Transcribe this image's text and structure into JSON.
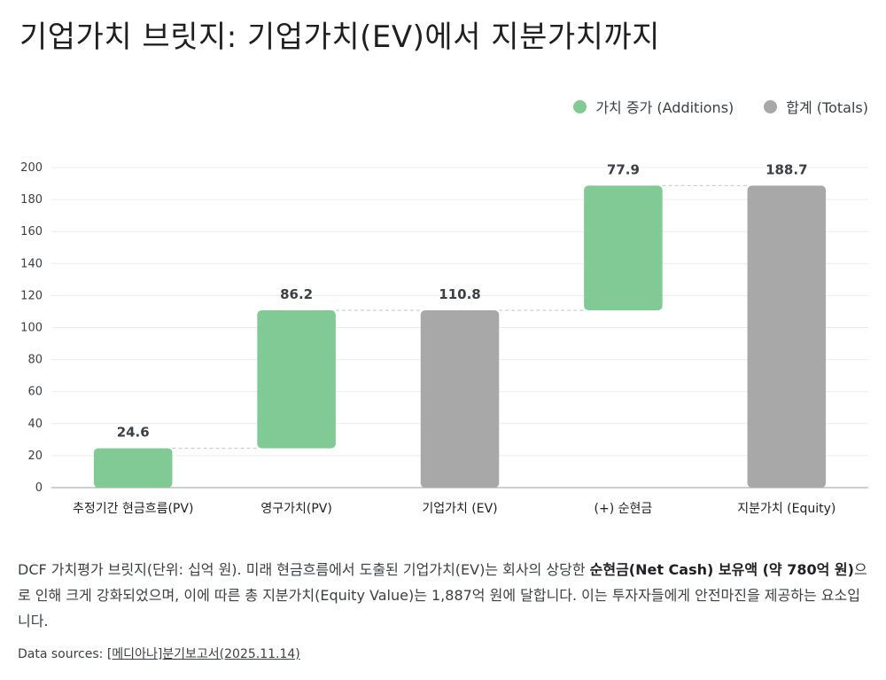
{
  "title": "기업가치 브릿지: 기업가치(EV)에서 지분가치까지",
  "legend": [
    {
      "label": "가치 증가 (Additions)",
      "color": "#81c995"
    },
    {
      "label": "합계 (Totals)",
      "color": "#a8a8a8"
    }
  ],
  "chart_data": {
    "type": "bar",
    "subtype": "waterfall",
    "categories": [
      "추정기간 현금흐름(PV)",
      "영구가치(PV)",
      "기업가치 (EV)",
      "(+) 순현금",
      "지분가치 (Equity)"
    ],
    "series": [
      {
        "name": "가치 증가 (Additions)",
        "points": [
          {
            "category": "추정기간 현금흐름(PV)",
            "start": 0,
            "end": 24.6,
            "label": "24.6"
          },
          {
            "category": "영구가치(PV)",
            "start": 24.6,
            "end": 110.8,
            "label": "86.2"
          },
          {
            "category": "(+) 순현금",
            "start": 110.8,
            "end": 188.7,
            "label": "77.9"
          }
        ]
      },
      {
        "name": "합계 (Totals)",
        "points": [
          {
            "category": "기업가치 (EV)",
            "start": 0,
            "end": 110.8,
            "label": "110.8"
          },
          {
            "category": "지분가치 (Equity)",
            "start": 0,
            "end": 188.7,
            "label": "188.7"
          }
        ]
      }
    ],
    "ylim": [
      0,
      200
    ],
    "yticks": [
      0,
      20,
      40,
      60,
      80,
      100,
      120,
      140,
      160,
      180,
      200
    ],
    "grid": true,
    "legend_position": "top-right",
    "colors": {
      "addition": "#81c995",
      "total": "#a8a8a8"
    }
  },
  "description": {
    "part1": "DCF 가치평가 브릿지(단위: 십억 원). 미래 현금흐름에서 도출된 기업가치(EV)는 회사의 상당한 ",
    "bold": "순현금(Net Cash) 보유액 (약 780억 원)",
    "part2": "으로 인해 크게 강화되었으며, 이에 따른 총 지분가치(Equity Value)는 1,887억 원에 달합니다. 이는 투자자들에게 안전마진을 제공하는 요소입니다."
  },
  "sources": {
    "prefix": "Data sources: ",
    "link": "[메디아나]분기보고서(2025.11.14)"
  }
}
